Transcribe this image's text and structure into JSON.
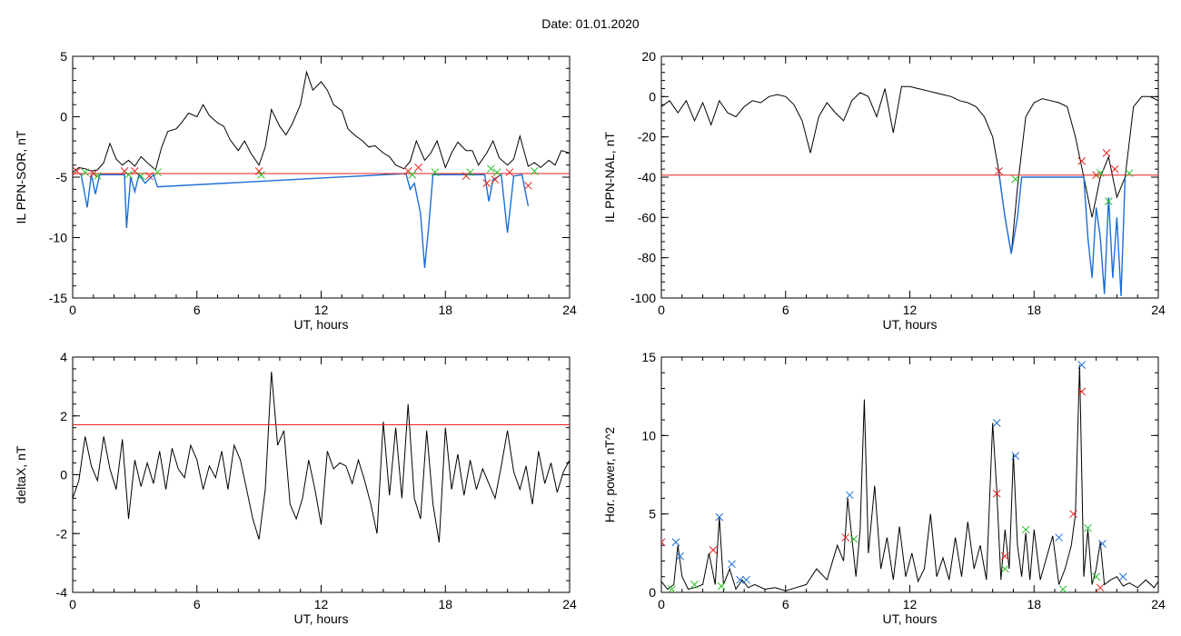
{
  "page": {
    "title": "Date:  01.01.2020"
  },
  "chart_data": [
    {
      "type": "line",
      "ylabel": "IL PPN-SOR, nT",
      "xlabel": "UT, hours",
      "xlim": [
        0,
        24
      ],
      "ylim": [
        -15,
        5
      ],
      "xticks": [
        0,
        6,
        12,
        18,
        24
      ],
      "yticks": [
        5,
        0,
        -5,
        -10,
        -15
      ],
      "grid": false,
      "threshold": -4.7,
      "series": [
        {
          "color": "#000000",
          "x": [
            0,
            0.3,
            0.6,
            0.9,
            1.2,
            1.5,
            1.8,
            2.1,
            2.4,
            2.7,
            3.0,
            3.3,
            3.6,
            4.0,
            4.3,
            4.6,
            5.0,
            5.3,
            5.6,
            6.0,
            6.3,
            6.6,
            7.0,
            7.3,
            7.6,
            8.0,
            8.3,
            8.6,
            9.0,
            9.3,
            9.6,
            10.0,
            10.3,
            10.6,
            11.0,
            11.3,
            11.6,
            12.0,
            12.3,
            12.6,
            13.0,
            13.3,
            13.6,
            14.0,
            14.3,
            14.6,
            15.0,
            15.3,
            15.6,
            16.0,
            16.3,
            16.6,
            17.0,
            17.3,
            17.6,
            18.0,
            18.3,
            18.6,
            19.0,
            19.3,
            19.6,
            20.0,
            20.3,
            20.6,
            21.0,
            21.3,
            21.6,
            22.0,
            22.3,
            22.6,
            23.0,
            23.3,
            23.6,
            24.0
          ],
          "y": [
            -4.6,
            -4.2,
            -4.3,
            -4.5,
            -4.4,
            -3.8,
            -2.2,
            -3.5,
            -4.0,
            -3.6,
            -4.1,
            -3.3,
            -3.8,
            -4.4,
            -2.5,
            -1.2,
            -1.0,
            -0.4,
            0.3,
            0.0,
            1.0,
            0.1,
            -0.5,
            -0.8,
            -1.9,
            -2.8,
            -2.0,
            -3.0,
            -4.0,
            -2.5,
            0.6,
            -0.8,
            -1.5,
            -0.6,
            1.0,
            3.7,
            2.2,
            2.9,
            2.2,
            1.0,
            0.5,
            -1.0,
            -1.5,
            -2.0,
            -2.5,
            -2.4,
            -3.0,
            -3.3,
            -4.0,
            -4.3,
            -3.7,
            -2.0,
            -3.6,
            -3.0,
            -2.0,
            -4.2,
            -3.0,
            -2.1,
            -2.8,
            -2.8,
            -4.0,
            -3.0,
            -2.0,
            -3.4,
            -4.0,
            -3.5,
            -1.6,
            -4.1,
            -3.8,
            -4.2,
            -3.6,
            -4.0,
            -2.8,
            -3.0
          ]
        },
        {
          "color": "#1c6fd6",
          "x": [
            0.4,
            0.7,
            0.9,
            1.1,
            1.3,
            2.5,
            2.6,
            2.8,
            3.0,
            3.2,
            3.5,
            3.9,
            4.1,
            16.1,
            16.3,
            16.5,
            16.8,
            17.0,
            17.2,
            17.4,
            19.9,
            20.1,
            20.3,
            20.7,
            21.0,
            21.3,
            21.7,
            22.0
          ],
          "y": [
            -4.7,
            -7.5,
            -4.8,
            -6.4,
            -4.8,
            -4.8,
            -9.2,
            -5.0,
            -6.2,
            -4.8,
            -5.5,
            -4.8,
            -5.8,
            -4.7,
            -6.0,
            -5.5,
            -8.0,
            -12.5,
            -9.0,
            -4.8,
            -4.8,
            -7.0,
            -5.2,
            -4.8,
            -9.6,
            -4.9,
            -4.8,
            -7.4
          ]
        }
      ],
      "markers": {
        "red_x": [
          [
            0.2,
            -4.5
          ],
          [
            1.0,
            -4.7
          ],
          [
            2.5,
            -4.5
          ],
          [
            3.0,
            -4.5
          ],
          [
            3.7,
            -4.9
          ],
          [
            9.0,
            -4.5
          ],
          [
            16.2,
            -4.5
          ],
          [
            16.7,
            -4.2
          ],
          [
            19.0,
            -4.9
          ],
          [
            20.0,
            -5.5
          ],
          [
            20.4,
            -5.2
          ],
          [
            21.1,
            -4.6
          ],
          [
            22.0,
            -5.7
          ]
        ],
        "green_x": [
          [
            0.6,
            -4.6
          ],
          [
            1.2,
            -4.9
          ],
          [
            2.7,
            -4.8
          ],
          [
            3.3,
            -4.9
          ],
          [
            4.1,
            -4.6
          ],
          [
            9.1,
            -4.8
          ],
          [
            16.4,
            -4.8
          ],
          [
            17.5,
            -4.6
          ],
          [
            19.2,
            -4.6
          ],
          [
            20.2,
            -4.3
          ],
          [
            20.5,
            -4.6
          ],
          [
            22.3,
            -4.5
          ]
        ]
      }
    },
    {
      "type": "line",
      "ylabel": "IL PPN-NAL, nT",
      "xlabel": "UT, hours",
      "xlim": [
        0,
        24
      ],
      "ylim": [
        -100,
        20
      ],
      "xticks": [
        0,
        6,
        12,
        18,
        24
      ],
      "yticks": [
        20,
        0,
        -20,
        -40,
        -60,
        -80,
        -100
      ],
      "grid": false,
      "threshold": -39,
      "series": [
        {
          "color": "#000000",
          "x": [
            0,
            0.4,
            0.8,
            1.2,
            1.6,
            2.0,
            2.4,
            2.8,
            3.2,
            3.6,
            4.0,
            4.4,
            4.8,
            5.2,
            5.6,
            6.0,
            6.4,
            6.8,
            7.2,
            7.6,
            8.0,
            8.4,
            8.8,
            9.2,
            9.6,
            10.0,
            10.4,
            10.8,
            11.2,
            11.6,
            12.0,
            12.4,
            12.8,
            13.2,
            13.6,
            14.0,
            14.4,
            14.8,
            15.2,
            15.6,
            16.0,
            16.3,
            16.6,
            16.9,
            17.2,
            17.6,
            18.0,
            18.4,
            18.8,
            19.2,
            19.6,
            20.0,
            20.4,
            20.8,
            21.2,
            21.6,
            22.0,
            22.4,
            22.8,
            23.2,
            23.6,
            24.0
          ],
          "y": [
            -5,
            -2,
            -8,
            -2,
            -12,
            -3,
            -14,
            -2,
            -8,
            -10,
            -5,
            -2,
            -3,
            0,
            1,
            0,
            -4,
            -12,
            -28,
            -10,
            -3,
            -8,
            -12,
            -2,
            2,
            0,
            -10,
            4,
            -18,
            5,
            5,
            4,
            3,
            2,
            1,
            0,
            -2,
            -3,
            -5,
            -10,
            -20,
            -37,
            -60,
            -78,
            -45,
            -10,
            -3,
            -1,
            -2,
            -3,
            -5,
            -20,
            -40,
            -60,
            -40,
            -30,
            -50,
            -40,
            -5,
            0,
            0,
            -2
          ]
        },
        {
          "color": "#1c6fd6",
          "x": [
            16.3,
            16.6,
            16.9,
            17.2,
            17.4,
            20.4,
            20.6,
            20.8,
            21.0,
            21.2,
            21.4,
            21.6,
            21.8,
            22.0,
            22.2,
            22.4
          ],
          "y": [
            -38,
            -60,
            -78,
            -60,
            -40,
            -40,
            -70,
            -90,
            -55,
            -70,
            -98,
            -50,
            -90,
            -60,
            -99,
            -40
          ]
        }
      ],
      "markers": {
        "red_x": [
          [
            16.3,
            -37
          ],
          [
            20.3,
            -32
          ],
          [
            21.0,
            -39
          ],
          [
            21.5,
            -28
          ],
          [
            21.9,
            -36
          ]
        ],
        "green_x": [
          [
            17.1,
            -41
          ],
          [
            21.2,
            -38
          ],
          [
            21.6,
            -52
          ],
          [
            22.6,
            -38
          ]
        ]
      }
    },
    {
      "type": "line",
      "ylabel": "deltaX, nT",
      "xlabel": "UT, hours",
      "xlim": [
        0,
        24
      ],
      "ylim": [
        -4,
        4
      ],
      "xticks": [
        0,
        6,
        12,
        18,
        24
      ],
      "yticks": [
        4,
        2,
        0,
        -2,
        -4
      ],
      "grid": false,
      "threshold": 1.7,
      "series": [
        {
          "color": "#000000",
          "x": [
            0,
            0.3,
            0.6,
            0.9,
            1.2,
            1.5,
            1.8,
            2.1,
            2.4,
            2.7,
            3.0,
            3.3,
            3.6,
            3.9,
            4.2,
            4.5,
            4.8,
            5.1,
            5.4,
            5.7,
            6.0,
            6.3,
            6.6,
            6.9,
            7.2,
            7.5,
            7.8,
            8.1,
            8.4,
            8.7,
            9.0,
            9.3,
            9.6,
            9.9,
            10.2,
            10.5,
            10.8,
            11.1,
            11.4,
            11.7,
            12.0,
            12.3,
            12.6,
            12.9,
            13.2,
            13.5,
            13.8,
            14.1,
            14.4,
            14.7,
            15.0,
            15.3,
            15.6,
            15.9,
            16.2,
            16.5,
            16.8,
            17.1,
            17.4,
            17.7,
            18.0,
            18.3,
            18.6,
            18.9,
            19.2,
            19.5,
            19.8,
            20.1,
            20.4,
            20.7,
            21.0,
            21.3,
            21.6,
            21.9,
            22.2,
            22.5,
            22.8,
            23.1,
            23.4,
            23.7,
            24.0
          ],
          "y": [
            -0.8,
            -0.2,
            1.3,
            0.3,
            -0.2,
            1.3,
            0.2,
            -0.5,
            1.2,
            -1.5,
            0.5,
            -0.4,
            0.4,
            -0.3,
            0.8,
            -0.5,
            0.9,
            0.2,
            -0.1,
            1.0,
            0.5,
            -0.5,
            0.3,
            -0.1,
            0.8,
            -0.5,
            1.0,
            0.5,
            -0.5,
            -1.5,
            -2.2,
            -0.5,
            3.5,
            1.0,
            1.5,
            -1.0,
            -1.5,
            -0.8,
            0.5,
            -0.5,
            -1.7,
            0.8,
            0.2,
            0.4,
            0.3,
            -0.3,
            0.5,
            -0.2,
            -1.0,
            -2.0,
            1.8,
            -0.7,
            1.6,
            -0.8,
            2.4,
            -0.8,
            -1.5,
            1.5,
            -1.0,
            -2.3,
            1.6,
            -0.5,
            0.7,
            -0.7,
            0.5,
            -0.5,
            0.2,
            -0.3,
            -0.8,
            0.3,
            1.5,
            0.1,
            -0.5,
            0.3,
            -1.0,
            0.8,
            -0.3,
            0.4,
            -0.6,
            0.1,
            0.5
          ]
        }
      ]
    },
    {
      "type": "line",
      "ylabel": "Hor. power, nT^2",
      "xlabel": "UT, hours",
      "xlim": [
        0,
        24
      ],
      "ylim": [
        0,
        15
      ],
      "xticks": [
        0,
        6,
        12,
        18,
        24
      ],
      "yticks": [
        15,
        10,
        5,
        0
      ],
      "grid": false,
      "series": [
        {
          "color": "#000000",
          "x": [
            0,
            0.3,
            0.6,
            0.8,
            1.0,
            1.3,
            1.6,
            2.0,
            2.3,
            2.6,
            2.8,
            3.0,
            3.3,
            3.6,
            3.9,
            4.2,
            4.5,
            5.0,
            5.5,
            6.0,
            6.5,
            7.0,
            7.5,
            8.0,
            8.5,
            8.8,
            9.0,
            9.2,
            9.4,
            9.6,
            9.8,
            10.0,
            10.3,
            10.6,
            10.9,
            11.2,
            11.5,
            11.8,
            12.1,
            12.4,
            12.7,
            13.0,
            13.3,
            13.6,
            13.9,
            14.2,
            14.5,
            14.8,
            15.1,
            15.4,
            15.7,
            16.0,
            16.2,
            16.4,
            16.6,
            16.8,
            17.0,
            17.2,
            17.4,
            17.6,
            17.8,
            18.0,
            18.3,
            18.6,
            18.9,
            19.2,
            19.5,
            19.8,
            20.0,
            20.2,
            20.4,
            20.6,
            20.8,
            21.0,
            21.2,
            21.4,
            21.7,
            22.0,
            22.3,
            22.6,
            23.0,
            23.4,
            23.8,
            24.0
          ],
          "y": [
            0.7,
            0.2,
            0.5,
            3.0,
            1.0,
            0.2,
            0.3,
            0.5,
            2.5,
            0.5,
            4.8,
            0.5,
            1.5,
            0.2,
            0.8,
            0.3,
            0.5,
            0.2,
            0.3,
            0.1,
            0.3,
            0.5,
            1.5,
            0.8,
            3.0,
            2.0,
            6.0,
            3.5,
            1.0,
            4.0,
            12.3,
            2.5,
            6.8,
            1.5,
            3.5,
            0.8,
            4.2,
            1.0,
            2.5,
            0.7,
            1.5,
            5.0,
            1.0,
            2.2,
            0.8,
            3.5,
            1.0,
            4.5,
            1.5,
            3.0,
            0.8,
            10.8,
            6.5,
            0.8,
            4.0,
            1.5,
            8.8,
            3.0,
            1.0,
            3.8,
            0.8,
            4.0,
            0.8,
            2.2,
            3.6,
            0.5,
            1.5,
            3.0,
            5.0,
            14.5,
            1.0,
            4.0,
            0.5,
            1.5,
            3.2,
            0.5,
            0.8,
            1.0,
            0.4,
            0.6,
            0.3,
            0.8,
            0.3,
            0.7
          ]
        }
      ],
      "markers": {
        "blue_x": [
          [
            0.7,
            3.2
          ],
          [
            0.9,
            2.3
          ],
          [
            2.8,
            4.8
          ],
          [
            3.4,
            1.8
          ],
          [
            3.8,
            0.8
          ],
          [
            4.1,
            0.8
          ],
          [
            9.1,
            6.2
          ],
          [
            16.2,
            10.8
          ],
          [
            17.1,
            8.7
          ],
          [
            19.2,
            3.5
          ],
          [
            20.3,
            14.5
          ],
          [
            21.3,
            3.1
          ],
          [
            22.3,
            1.0
          ]
        ],
        "red_x": [
          [
            0,
            3.2
          ],
          [
            2.5,
            2.7
          ],
          [
            8.9,
            3.5
          ],
          [
            16.2,
            6.3
          ],
          [
            16.6,
            2.3
          ],
          [
            19.9,
            5.0
          ],
          [
            20.3,
            12.8
          ],
          [
            21.2,
            0.3
          ]
        ],
        "green_x": [
          [
            0.5,
            0.2
          ],
          [
            1.6,
            0.5
          ],
          [
            2.9,
            0.4
          ],
          [
            9.3,
            3.4
          ],
          [
            16.6,
            1.5
          ],
          [
            17.6,
            4.0
          ],
          [
            19.4,
            0.2
          ],
          [
            20.6,
            4.1
          ],
          [
            21.0,
            1.0
          ]
        ]
      }
    }
  ]
}
